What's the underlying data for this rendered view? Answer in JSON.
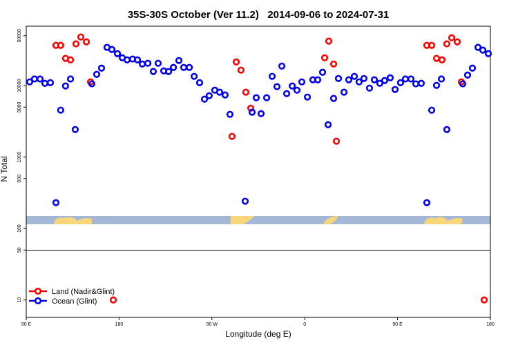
{
  "chart_data": {
    "type": "scatter",
    "title": "35S-30S October (Ver 11.2)   2014-09-06 to 2024-07-31",
    "x_label": "Longitude (deg E)",
    "y_label": "N Total",
    "log_y": true,
    "xlim": [
      90,
      540
    ],
    "xticks": [
      {
        "value": 90,
        "label": "90 E"
      },
      {
        "value": 180,
        "label": "180"
      },
      {
        "value": 270,
        "label": "90 W"
      },
      {
        "value": 360,
        "label": "0"
      },
      {
        "value": 450,
        "label": "90 E"
      },
      {
        "value": 540,
        "label": "180"
      }
    ],
    "ylim": [
      5.7,
      68000
    ],
    "yticks": [
      10,
      50,
      100,
      500,
      1000,
      5000,
      10000,
      50000
    ],
    "legend": "lower left",
    "series": [
      {
        "name": "Land (Nadir&Glint)",
        "color": "#ff0000",
        "x": [
          118.8,
          123.4,
          128.1,
          132.9,
          138.2,
          142.9,
          148.3,
          152.3,
          174.4,
          289.5,
          293.6,
          298.2,
          302.9,
          307.7,
          379.3,
          383.3,
          388.0,
          390.7,
          478.4,
          483.1,
          487.8,
          493.1,
          497.8,
          502.5,
          507.9,
          511.9,
          534.0
        ],
        "values": [
          36700,
          36700,
          24100,
          23000,
          38500,
          48000,
          41100,
          11300,
          10,
          1950,
          21500,
          16500,
          8100,
          4850,
          24600,
          42000,
          20100,
          1670,
          36700,
          36700,
          24100,
          23000,
          38500,
          46900,
          41100,
          11300,
          10
        ]
      },
      {
        "name": "Ocean (Glint)",
        "color": "#0000ee",
        "x": [
          93.3,
          98.0,
          103.4,
          108.1,
          113.4,
          118.8,
          123.4,
          128.1,
          132.9,
          137.5,
          153.6,
          158.3,
          163.0,
          168.3,
          173.0,
          178.4,
          183.1,
          187.8,
          193.1,
          197.8,
          202.5,
          207.9,
          213.2,
          217.9,
          223.3,
          228.0,
          232.7,
          238.0,
          242.7,
          248.1,
          252.8,
          258.1,
          262.8,
          267.4,
          272.8,
          277.5,
          282.8,
          287.5,
          302.3,
          309.0,
          313.0,
          317.7,
          323.1,
          328.4,
          333.1,
          337.8,
          342.5,
          347.9,
          352.5,
          357.2,
          362.6,
          367.9,
          372.6,
          377.3,
          382.7,
          388.0,
          392.7,
          398.1,
          402.7,
          408.1,
          412.7,
          417.4,
          422.8,
          427.5,
          432.8,
          437.5,
          442.9,
          447.6,
          452.9,
          457.6,
          463.0,
          467.7,
          473.0,
          478.4,
          483.1,
          487.8,
          492.5,
          497.8,
          513.2,
          517.9,
          522.6,
          528.0,
          532.7,
          538.0
        ],
        "values": [
          11300,
          12400,
          12400,
          10800,
          11000,
          230,
          4540,
          9900,
          12400,
          2430,
          10600,
          14400,
          17600,
          34400,
          32100,
          28100,
          24600,
          23000,
          23600,
          23000,
          20100,
          20600,
          15800,
          20600,
          16100,
          15800,
          18000,
          22500,
          18000,
          18000,
          13500,
          11000,
          6480,
          7240,
          8650,
          8100,
          7410,
          3970,
          241,
          4250,
          6780,
          4060,
          6780,
          13500,
          9700,
          18800,
          7740,
          9900,
          8650,
          11300,
          6930,
          12100,
          12100,
          15400,
          2840,
          6630,
          12600,
          8100,
          12100,
          13500,
          11300,
          12600,
          9250,
          12100,
          10800,
          11800,
          12900,
          8850,
          11000,
          12400,
          12400,
          10600,
          10800,
          230,
          4540,
          10100,
          12400,
          2430,
          10600,
          14100,
          17600,
          34400,
          31500,
          28100
        ]
      }
    ]
  }
}
